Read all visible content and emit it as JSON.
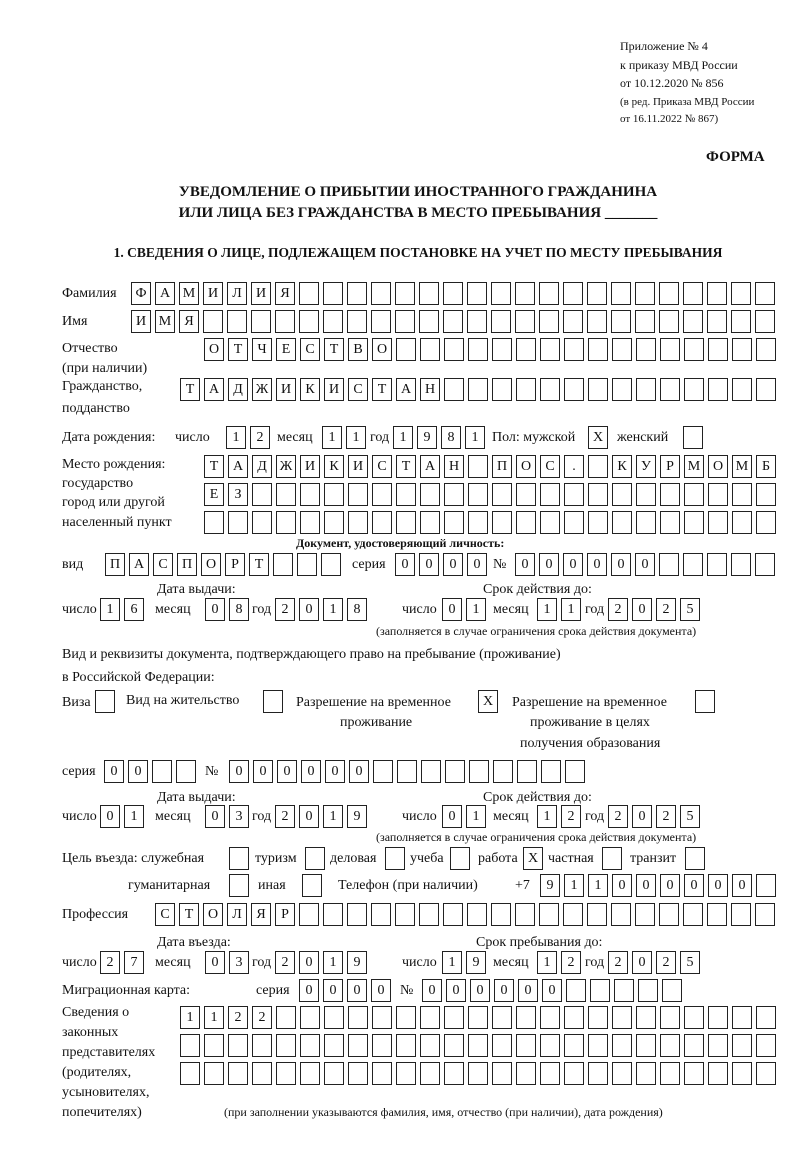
{
  "header": {
    "lines": [
      "Приложение № 4",
      "к приказу МВД России",
      "от 10.12.2020 № 856",
      "(в ред. Приказа МВД России",
      "от 16.11.2022 № 867)"
    ],
    "form": "ФОРМА"
  },
  "title": {
    "line1": "УВЕДОМЛЕНИЕ О ПРИБЫТИИ ИНОСТРАННОГО ГРАЖДАНИНА",
    "line2": "ИЛИ ЛИЦА БЕЗ ГРАЖДАНСТВА В МЕСТО ПРЕБЫВАНИЯ _______"
  },
  "section1": "1. СВЕДЕНИЯ О ЛИЦЕ, ПОДЛЕЖАЩЕМ ПОСТАНОВКЕ НА УЧЕТ ПО МЕСТУ ПРЕБЫВАНИЯ",
  "labels": {
    "surname": "Фамилия",
    "name": "Имя",
    "patronymic1": "Отчество",
    "patronymic2": "(при наличии)",
    "citizenship1": "Гражданство,",
    "citizenship2": "подданство",
    "birth_date": "Дата рождения:",
    "day": "число",
    "month": "месяц",
    "year": "год",
    "sex_male": "Пол: мужской",
    "sex_female": "женский",
    "birthplace1": "Место рождения:",
    "birthplace2": "государство",
    "birthplace3": "город или другой",
    "birthplace4": "населенный пункт",
    "id_doc": "Документ, удостоверяющий личность:",
    "kind": "вид",
    "series": "серия",
    "number": "№",
    "issue_date": "Дата выдачи:",
    "valid_until": "Срок действия до:",
    "valid_note": "(заполняется в случае ограничения срока действия документа)",
    "stay_doc1": "Вид и реквизиты документа, подтверждающего право на пребывание (проживание)",
    "stay_doc2": "в Российской Федерации:",
    "visa": "Виза",
    "residence": "Вид на жительство",
    "trp1": "Разрешение на временное",
    "trp2": "проживание",
    "trp_edu1": "Разрешение на временное",
    "trp_edu2": "проживание в целях",
    "trp_edu3": "получения образования",
    "purpose": "Цель въезда: служебная",
    "tourism": "туризм",
    "business": "деловая",
    "study": "учеба",
    "work": "работа",
    "private": "частная",
    "transit": "транзит",
    "humanitarian": "гуманитарная",
    "other": "иная",
    "phone": "Телефон (при наличии)",
    "phone_prefix": "+7",
    "profession": "Профессия",
    "entry_date": "Дата въезда:",
    "stay_until": "Срок пребывания до:",
    "migration_card": "Миграционная карта:",
    "reps": [
      "Сведения о",
      "законных",
      "представителях",
      "(родителях,",
      "усыновителях,",
      "попечителях)"
    ],
    "reps_note": "(при заполнении указываются фамилия, имя, отчество (при наличии), дата рождения)"
  },
  "values": {
    "surname": "ФАМИЛИЯ",
    "name": "ИМЯ",
    "patronymic": "ОТЧЕСТВО",
    "citizenship": "ТАДЖИКИСТАН",
    "birth_day": "12",
    "birth_month": "11",
    "birth_year": "1981",
    "sex_male": "X",
    "sex_female": "",
    "birthplace1": "ТАДЖИКИСТАН ПОС. КУРМОМБ",
    "birthplace2": "ЕЗ",
    "birthplace3": "",
    "doc_kind": "ПАСПОРТ",
    "doc_series": "0000",
    "doc_number": "000000",
    "doc_issue_day": "16",
    "doc_issue_month": "08",
    "doc_issue_year": "2018",
    "doc_valid_day": "01",
    "doc_valid_month": "11",
    "doc_valid_year": "2025",
    "visa": "",
    "residence": "",
    "trp": "X",
    "trp_edu": "",
    "stay_series": "00",
    "stay_number": "000000",
    "stay_issue_day": "01",
    "stay_issue_month": "03",
    "stay_issue_year": "2019",
    "stay_valid_day": "01",
    "stay_valid_month": "12",
    "stay_valid_year": "2025",
    "p_official": "",
    "p_tourism": "",
    "p_business": "",
    "p_study": "",
    "p_work": "X",
    "p_private": "",
    "p_transit": "",
    "p_humanitarian": "",
    "p_other": "",
    "phone": "911000000",
    "profession": "СТОЛЯР",
    "entry_day": "27",
    "entry_month": "03",
    "entry_year": "2019",
    "stay_until_day": "19",
    "stay_until_month": "12",
    "stay_until_year": "2025",
    "mc_series": "0000",
    "mc_number": "000000",
    "reps1": "1122",
    "reps2": "",
    "reps3": ""
  }
}
